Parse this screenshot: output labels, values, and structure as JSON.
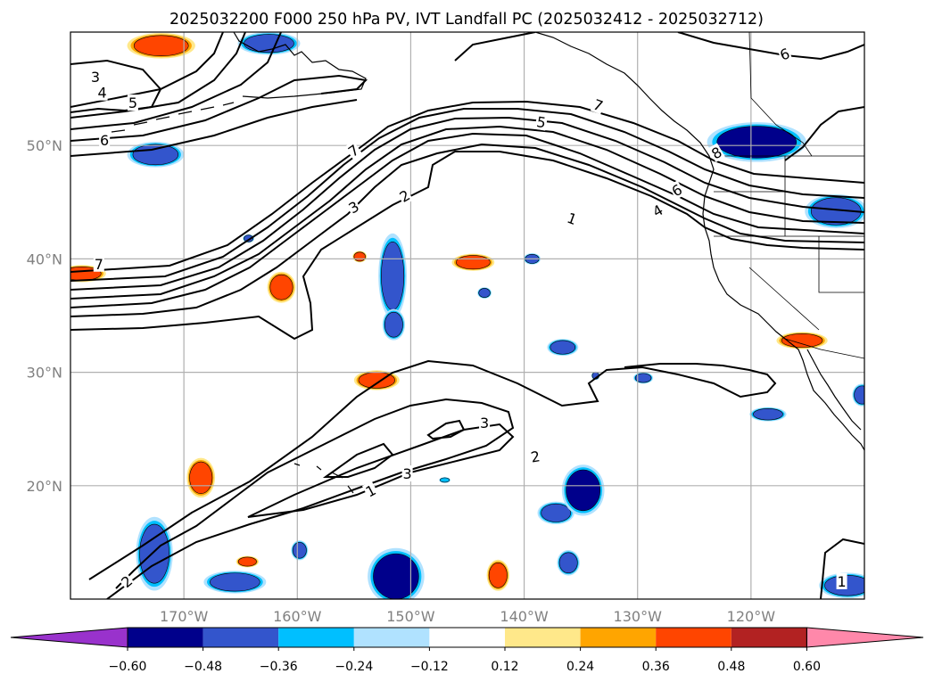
{
  "chart_data": {
    "type": "contour_map",
    "title": "2025032200 F000 250 hPa PV, IVT Landfall PC (2025032412 - 2025032712)",
    "map": {
      "lon_range": [
        -180,
        -110
      ],
      "lat_range": [
        10,
        60
      ],
      "lon_ticks": [
        -170,
        -160,
        -150,
        -140,
        -130,
        -120
      ],
      "lon_tick_labels": [
        "170°W",
        "160°W",
        "150°W",
        "140°W",
        "130°W",
        "120°W"
      ],
      "lat_ticks": [
        20,
        30,
        40,
        50
      ],
      "lat_tick_labels": [
        "20°N",
        "30°N",
        "40°N",
        "50°N"
      ],
      "gridlines": true
    },
    "colorbar": {
      "ticks": [
        -0.6,
        -0.48,
        -0.36,
        -0.24,
        -0.12,
        0.12,
        0.24,
        0.36,
        0.48,
        0.6
      ],
      "tick_labels": [
        "−0.60",
        "−0.48",
        "−0.36",
        "−0.24",
        "−0.12",
        "0.12",
        "0.24",
        "0.36",
        "0.48",
        "0.60"
      ],
      "under_color": "#9932cc",
      "over_color": "#ff88aa",
      "colors": [
        "#00008b",
        "#3355cc",
        "#00bfff",
        "#b0e2ff",
        "#ffffff",
        "#ffe88a",
        "#ffa500",
        "#ff4500",
        "#b22222"
      ]
    },
    "contour_levels": [
      1,
      2,
      3,
      4,
      5,
      6,
      7,
      8
    ],
    "contour_labels": [
      {
        "text": "1",
        "lon": -153.5,
        "lat": 19.5,
        "rot": -28
      },
      {
        "text": "2",
        "lon": -139.0,
        "lat": 22.5,
        "rot": -10
      },
      {
        "text": "3",
        "lon": -150.3,
        "lat": 21.0,
        "rot": 0
      },
      {
        "text": "3",
        "lon": -143.5,
        "lat": 25.5,
        "rot": 0
      },
      {
        "text": "2",
        "lon": -175.0,
        "lat": 11.5,
        "rot": -40
      },
      {
        "text": "1",
        "lon": -135.8,
        "lat": 43.5,
        "rot": 20
      },
      {
        "text": "2",
        "lon": -150.5,
        "lat": 45.5,
        "rot": -30
      },
      {
        "text": "3",
        "lon": -155.0,
        "lat": 44.5,
        "rot": -30
      },
      {
        "text": "4",
        "lon": -128.2,
        "lat": 44.2,
        "rot": -30
      },
      {
        "text": "5",
        "lon": -138.5,
        "lat": 52.0,
        "rot": 10
      },
      {
        "text": "6",
        "lon": -126.5,
        "lat": 46.0,
        "rot": -30
      },
      {
        "text": "7",
        "lon": -133.5,
        "lat": 53.5,
        "rot": 20
      },
      {
        "text": "7",
        "lon": -155.0,
        "lat": 49.5,
        "rot": -35
      },
      {
        "text": "8",
        "lon": -123.0,
        "lat": 49.3,
        "rot": -30
      },
      {
        "text": "3",
        "lon": -177.8,
        "lat": 56.0,
        "rot": 0
      },
      {
        "text": "4",
        "lon": -177.2,
        "lat": 54.6,
        "rot": 0
      },
      {
        "text": "5",
        "lon": -174.5,
        "lat": 53.7,
        "rot": 0
      },
      {
        "text": "6",
        "lon": -177.0,
        "lat": 50.4,
        "rot": 0
      },
      {
        "text": "6",
        "lon": -117.0,
        "lat": 58.0,
        "rot": -20
      },
      {
        "text": "7",
        "lon": -177.5,
        "lat": 39.5,
        "rot": 0
      },
      {
        "text": "1",
        "lon": -112.0,
        "lat": 11.5,
        "rot": 0
      }
    ],
    "pv_anomaly_patches": [
      {
        "lon": -172,
        "lat": 58.8,
        "rx": 2.4,
        "ry": 0.9,
        "value": 0.45
      },
      {
        "lon": -162.5,
        "lat": 59,
        "rx": 2.2,
        "ry": 0.8,
        "value": -0.45
      },
      {
        "lon": -172.5,
        "lat": 49.2,
        "rx": 2,
        "ry": 0.9,
        "value": -0.45
      },
      {
        "lon": -179,
        "lat": 38.7,
        "rx": 1.7,
        "ry": 0.6,
        "value": 0.45
      },
      {
        "lon": -161.4,
        "lat": 37.5,
        "rx": 1,
        "ry": 1.1,
        "value": 0.45
      },
      {
        "lon": -154.5,
        "lat": 40.2,
        "rx": 0.5,
        "ry": 0.4,
        "value": 0.45
      },
      {
        "lon": -164.3,
        "lat": 41.8,
        "rx": 0.4,
        "ry": 0.3,
        "value": -0.4
      },
      {
        "lon": -151.6,
        "lat": 38.5,
        "rx": 1,
        "ry": 3,
        "value": -0.45
      },
      {
        "lon": -151.5,
        "lat": 34.2,
        "rx": 0.8,
        "ry": 1.1,
        "value": -0.45
      },
      {
        "lon": -144.5,
        "lat": 39.7,
        "rx": 1.5,
        "ry": 0.6,
        "value": 0.45
      },
      {
        "lon": -143.5,
        "lat": 37.0,
        "rx": 0.5,
        "ry": 0.4,
        "value": -0.4
      },
      {
        "lon": -139.3,
        "lat": 40,
        "rx": 0.6,
        "ry": 0.4,
        "value": -0.4
      },
      {
        "lon": -153,
        "lat": 29.3,
        "rx": 1.6,
        "ry": 0.7,
        "value": 0.45
      },
      {
        "lon": -136.6,
        "lat": 32.2,
        "rx": 1.1,
        "ry": 0.6,
        "value": -0.45
      },
      {
        "lon": -129.5,
        "lat": 29.5,
        "rx": 0.7,
        "ry": 0.4,
        "value": -0.4
      },
      {
        "lon": -133.7,
        "lat": 29.7,
        "rx": 0.3,
        "ry": 0.3,
        "value": -0.4
      },
      {
        "lon": -119.5,
        "lat": 50.3,
        "rx": 3.5,
        "ry": 1.4,
        "value": -0.5
      },
      {
        "lon": -115.5,
        "lat": 32.8,
        "rx": 1.8,
        "ry": 0.6,
        "value": 0.45
      },
      {
        "lon": -118.5,
        "lat": 26.3,
        "rx": 1.3,
        "ry": 0.5,
        "value": -0.45
      },
      {
        "lon": -112.5,
        "lat": 44.2,
        "rx": 2.2,
        "ry": 1.2,
        "value": -0.45
      },
      {
        "lon": -110.2,
        "lat": 28,
        "rx": 0.7,
        "ry": 0.8,
        "value": -0.45
      },
      {
        "lon": -111.5,
        "lat": 11.2,
        "rx": 2,
        "ry": 0.9,
        "value": -0.45
      },
      {
        "lon": -168.5,
        "lat": 20.7,
        "rx": 1,
        "ry": 1.4,
        "value": 0.45
      },
      {
        "lon": -172.6,
        "lat": 14,
        "rx": 1.3,
        "ry": 2.6,
        "value": -0.45
      },
      {
        "lon": -165.5,
        "lat": 11.5,
        "rx": 2.2,
        "ry": 0.8,
        "value": -0.45
      },
      {
        "lon": -164.4,
        "lat": 13.3,
        "rx": 0.8,
        "ry": 0.4,
        "value": 0.45
      },
      {
        "lon": -159.8,
        "lat": 14.3,
        "rx": 0.6,
        "ry": 0.7,
        "value": -0.4
      },
      {
        "lon": -151.3,
        "lat": 12,
        "rx": 2,
        "ry": 2,
        "value": -0.5
      },
      {
        "lon": -137.2,
        "lat": 17.6,
        "rx": 1.3,
        "ry": 0.8,
        "value": -0.45
      },
      {
        "lon": -134.8,
        "lat": 19.6,
        "rx": 1.5,
        "ry": 1.8,
        "value": -0.55
      },
      {
        "lon": -142.3,
        "lat": 12.1,
        "rx": 0.8,
        "ry": 1.1,
        "value": 0.45
      },
      {
        "lon": -136.1,
        "lat": 13.2,
        "rx": 0.8,
        "ry": 0.9,
        "value": -0.45
      },
      {
        "lon": -147,
        "lat": 20.5,
        "rx": 0.4,
        "ry": 0.2,
        "value": -0.35
      }
    ]
  }
}
